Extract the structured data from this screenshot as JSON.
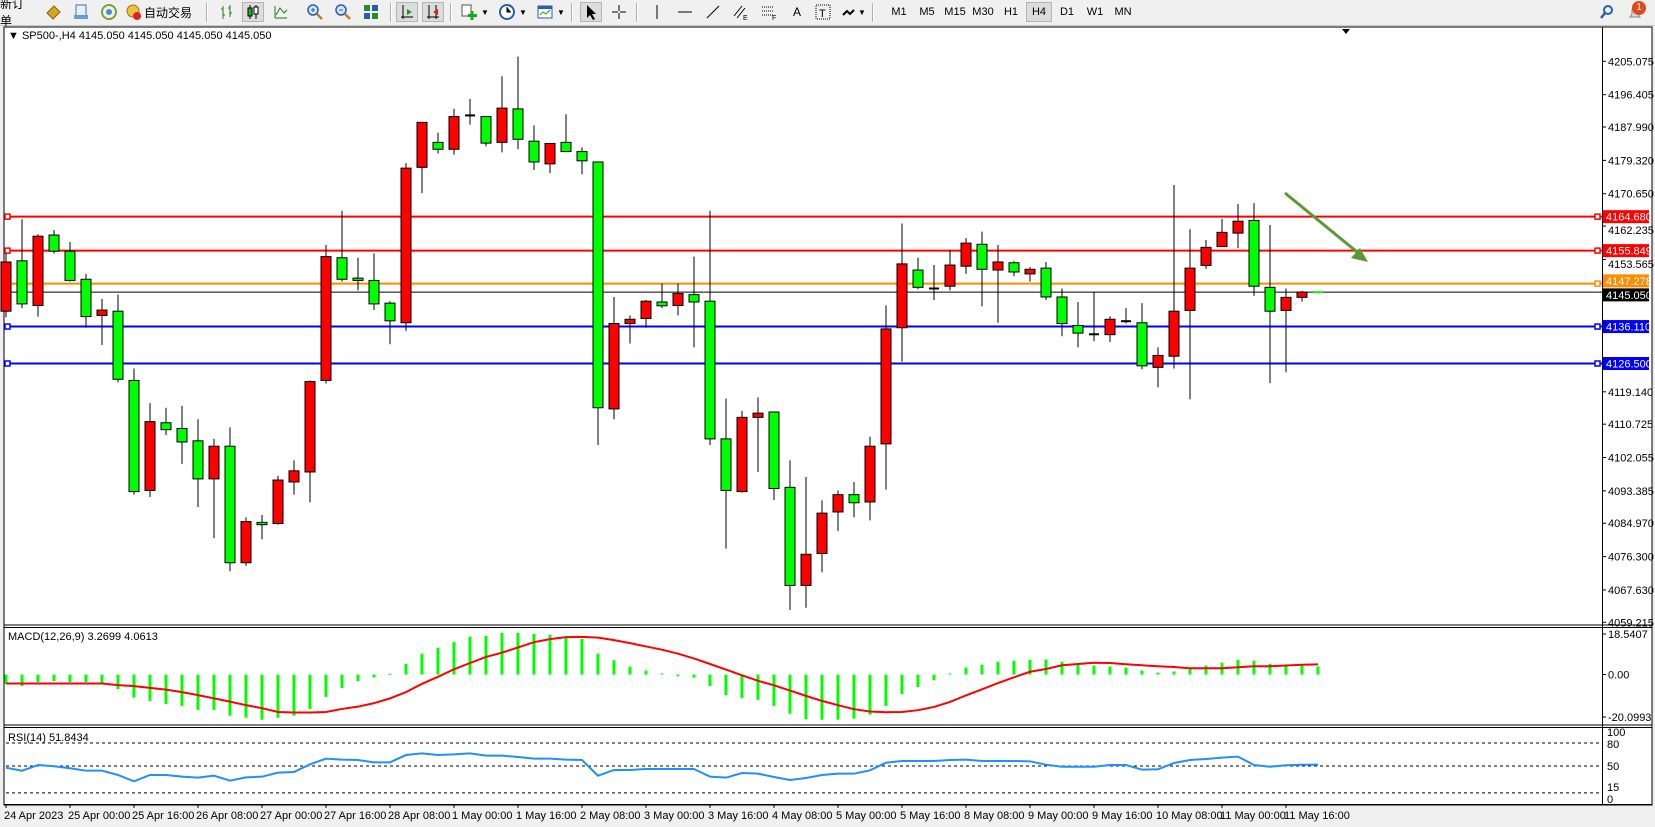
{
  "toolbar": {
    "new_order_label": "新订单",
    "auto_trading_label": "自动交易",
    "timeframes": [
      "M1",
      "M5",
      "M15",
      "M30",
      "H1",
      "H4",
      "D1",
      "W1",
      "MN"
    ],
    "selected_timeframe": "H4",
    "notification_count": "1",
    "tool_letters": {
      "channel": "E",
      "fibo": "F",
      "text": "A",
      "label": "T"
    }
  },
  "chart": {
    "header": "SP500-,H4  4145.050 4145.050 4145.050 4145.050",
    "symbol": "SP500-",
    "period": "H4",
    "current_price": 4145.05,
    "price_axis_labels": [
      "4205.075",
      "4196.405",
      "4187.990",
      "4179.320",
      "4170.650",
      "4162.235",
      "4153.565",
      "4119.140",
      "4110.725",
      "4102.055",
      "4093.385",
      "4084.970",
      "4076.300",
      "4067.630",
      "4059.215"
    ],
    "price_range": [
      4059.215,
      4205.075
    ],
    "bull_color": "#ff0000",
    "bear_color": "#00ff00",
    "horizontal_lines": [
      {
        "price": 4164.68,
        "label": "4164.680",
        "color": "#ff0000"
      },
      {
        "price": 4155.849,
        "label": "4155.849",
        "color": "#ff0000"
      },
      {
        "price": 4147.278,
        "label": "4147.278",
        "color": "#ff8c00"
      },
      {
        "price": 4145.05,
        "label": "4145.050",
        "color": "#000000"
      },
      {
        "price": 4136.11,
        "label": "4136.110",
        "color": "#0000ff"
      },
      {
        "price": 4126.5,
        "label": "4126.500",
        "color": "#0000ff"
      }
    ],
    "arrow_color": "#5a9a32",
    "candles_ohlc": [
      [
        4140.1,
        4155.1,
        4138.5,
        4152.9
      ],
      [
        4153.2,
        4164.0,
        4140.9,
        4142.0
      ],
      [
        4141.6,
        4160.1,
        4138.7,
        4159.6
      ],
      [
        4159.9,
        4161.2,
        4155.1,
        4155.7
      ],
      [
        4155.7,
        4158.1,
        4147.8,
        4148.1
      ],
      [
        4148.4,
        4149.8,
        4135.8,
        4138.7
      ],
      [
        4139.0,
        4143.3,
        4131.3,
        4140.4
      ],
      [
        4140.1,
        4144.4,
        4121.6,
        4122.4
      ],
      [
        4122.1,
        4125.2,
        4092.4,
        4093.2
      ],
      [
        4093.5,
        4116.2,
        4091.8,
        4111.4
      ],
      [
        4111.1,
        4115.0,
        4107.9,
        4109.3
      ],
      [
        4109.6,
        4115.5,
        4100.4,
        4106.1
      ],
      [
        4106.4,
        4112.0,
        4089.2,
        4096.5
      ],
      [
        4096.5,
        4106.9,
        4081.1,
        4105.0
      ],
      [
        4105.0,
        4109.9,
        4072.5,
        4074.7
      ],
      [
        4074.7,
        4086.5,
        4073.9,
        4085.4
      ],
      [
        4085.2,
        4087.1,
        4080.8,
        4084.6
      ],
      [
        4084.9,
        4097.3,
        4084.6,
        4096.2
      ],
      [
        4095.7,
        4101.3,
        4092.4,
        4098.6
      ],
      [
        4098.3,
        4122.1,
        4090.4,
        4121.8
      ],
      [
        4122.1,
        4157.3,
        4121.3,
        4154.3
      ],
      [
        4154.0,
        4166.2,
        4147.8,
        4148.4
      ],
      [
        4148.7,
        4154.0,
        4145.5,
        4148.1
      ],
      [
        4148.1,
        4155.1,
        4140.4,
        4142.0
      ],
      [
        4142.2,
        4142.7,
        4131.5,
        4137.6
      ],
      [
        4137.1,
        4178.6,
        4135.0,
        4177.3
      ],
      [
        4177.5,
        4189.2,
        4170.8,
        4189.2
      ],
      [
        4184.0,
        4186.5,
        4181.1,
        4182.2
      ],
      [
        4182.2,
        4192.7,
        4180.8,
        4190.7
      ],
      [
        4191.0,
        4195.3,
        4188.6,
        4191.0
      ],
      [
        4190.7,
        4190.7,
        4183.0,
        4183.8
      ],
      [
        4184.0,
        4201.2,
        4181.4,
        4192.9
      ],
      [
        4192.7,
        4206.3,
        4182.2,
        4184.8
      ],
      [
        4184.3,
        4188.4,
        4176.8,
        4178.9
      ],
      [
        4178.4,
        4183.7,
        4176.0,
        4183.7
      ],
      [
        4184.0,
        4191.3,
        4181.6,
        4181.6
      ],
      [
        4181.6,
        4182.7,
        4175.7,
        4179.2
      ],
      [
        4178.9,
        4178.9,
        4105.3,
        4115.0
      ],
      [
        4114.7,
        4143.8,
        4112.0,
        4136.9
      ],
      [
        4136.9,
        4139.0,
        4131.7,
        4138.0
      ],
      [
        4138.2,
        4143.0,
        4135.8,
        4142.7
      ],
      [
        4142.5,
        4147.3,
        4140.9,
        4141.5
      ],
      [
        4141.6,
        4147.3,
        4139.0,
        4144.7
      ],
      [
        4144.4,
        4154.3,
        4130.7,
        4142.5
      ],
      [
        4142.7,
        4166.2,
        4105.3,
        4106.9
      ],
      [
        4106.9,
        4117.4,
        4078.4,
        4093.5
      ],
      [
        4093.2,
        4114.2,
        4092.9,
        4112.5
      ],
      [
        4112.5,
        4117.7,
        4098.3,
        4113.6
      ],
      [
        4113.9,
        4113.9,
        4091.0,
        4094.0
      ],
      [
        4094.3,
        4101.3,
        4062.4,
        4068.8
      ],
      [
        4068.8,
        4097.0,
        4063.0,
        4076.9
      ],
      [
        4077.1,
        4090.9,
        4072.2,
        4087.6
      ],
      [
        4087.9,
        4093.5,
        4083.0,
        4092.4
      ],
      [
        4092.4,
        4095.7,
        4086.5,
        4090.3
      ],
      [
        4090.5,
        4107.5,
        4085.7,
        4105.0
      ],
      [
        4105.6,
        4141.6,
        4093.7,
        4135.5
      ],
      [
        4135.8,
        4162.9,
        4127.0,
        4152.4
      ],
      [
        4150.8,
        4154.0,
        4145.8,
        4146.3
      ],
      [
        4146.0,
        4152.1,
        4143.0,
        4146.0
      ],
      [
        4146.6,
        4156.0,
        4145.5,
        4152.1
      ],
      [
        4151.8,
        4159.1,
        4149.8,
        4157.8
      ],
      [
        4157.5,
        4160.8,
        4141.4,
        4151.0
      ],
      [
        4150.8,
        4157.3,
        4137.1,
        4152.9
      ],
      [
        4152.7,
        4153.2,
        4149.2,
        4150.3
      ],
      [
        4149.8,
        4151.6,
        4147.8,
        4151.0
      ],
      [
        4151.3,
        4152.9,
        4143.0,
        4143.8
      ],
      [
        4143.8,
        4146.0,
        4133.6,
        4136.9
      ],
      [
        4136.4,
        4142.5,
        4130.7,
        4134.4
      ],
      [
        4134.1,
        4145.2,
        4132.3,
        4134.1
      ],
      [
        4134.0,
        4138.8,
        4132.1,
        4138.0
      ],
      [
        4137.5,
        4140.9,
        4136.9,
        4137.5
      ],
      [
        4137.1,
        4142.2,
        4125.0,
        4125.9
      ],
      [
        4125.5,
        4130.7,
        4120.3,
        4128.6
      ],
      [
        4128.4,
        4172.9,
        4125.2,
        4140.1
      ],
      [
        4140.3,
        4161.4,
        4117.2,
        4151.3
      ],
      [
        4152.0,
        4158.6,
        4151.1,
        4156.7
      ],
      [
        4156.9,
        4164.1,
        4156.9,
        4160.6
      ],
      [
        4160.4,
        4168.0,
        4156.5,
        4163.5
      ],
      [
        4163.7,
        4168.2,
        4144.1,
        4146.6
      ],
      [
        4146.3,
        4162.5,
        4121.4,
        4140.1
      ],
      [
        4140.3,
        4146.0,
        4124.2,
        4143.7
      ],
      [
        4143.7,
        4145.4,
        4142.6,
        4145.05
      ],
      [
        4145.05,
        4145.05,
        4145.05,
        4145.05
      ]
    ],
    "time_labels": [
      "24 Apr 2023",
      "25 Apr 00:00",
      "25 Apr 16:00",
      "26 Apr 08:00",
      "27 Apr 00:00",
      "27 Apr 16:00",
      "28 Apr 08:00",
      "1 May 00:00",
      "1 May 16:00",
      "2 May 08:00",
      "3 May 00:00",
      "3 May 16:00",
      "4 May 08:00",
      "5 May 00:00",
      "5 May 16:00",
      "8 May 08:00",
      "9 May 00:00",
      "9 May 16:00",
      "10 May 08:00",
      "11 May 00:00",
      "11 May 16:00"
    ]
  },
  "macd": {
    "label": "MACD(12,26,9) 3.2699 4.0613",
    "axis_labels": [
      "18.5407",
      "0.00",
      "-20.0993"
    ],
    "range": [
      -20.0993,
      18.5407
    ],
    "histogram_color": "#00ff00",
    "signal_color": "#ff0000",
    "histogram": [
      -3.7,
      -4.6,
      -3.0,
      -2.6,
      -3.0,
      -3.0,
      -3.9,
      -5.8,
      -9.2,
      -10.5,
      -11.8,
      -12.5,
      -14.1,
      -14.1,
      -16.4,
      -17.2,
      -18.0,
      -17.2,
      -16.4,
      -13.8,
      -8.9,
      -5.4,
      -2.6,
      -1.1,
      0.3,
      4.2,
      8.3,
      10.7,
      13.0,
      15.0,
      15.4,
      16.6,
      16.6,
      16.2,
      15.8,
      14.7,
      14.2,
      8.3,
      5.7,
      3.2,
      1.6,
      0.4,
      -0.7,
      -1.2,
      -4.6,
      -8.2,
      -9.3,
      -10.1,
      -12.5,
      -15.6,
      -17.8,
      -18.0,
      -18.0,
      -17.6,
      -16.0,
      -12.5,
      -7.8,
      -5.0,
      -2.2,
      0.4,
      2.8,
      3.9,
      5.1,
      5.5,
      5.9,
      6.0,
      5.1,
      3.9,
      3.6,
      3.2,
      2.8,
      1.6,
      0.8,
      1.2,
      2.8,
      3.6,
      4.7,
      5.9,
      5.5,
      4.3,
      3.9,
      3.9,
      3.2699
    ],
    "signal": [
      -3.55,
      -3.55,
      -3.55,
      -3.55,
      -3.55,
      -3.55,
      -3.55,
      -4.2,
      -4.6,
      -5.3,
      -6.0,
      -7.0,
      -8.2,
      -9.5,
      -10.8,
      -12.2,
      -13.4,
      -14.9,
      -15.1,
      -15.1,
      -14.9,
      -13.7,
      -12.8,
      -11.4,
      -9.5,
      -7.0,
      -3.7,
      -0.9,
      2.1,
      4.6,
      7.0,
      8.7,
      10.8,
      12.9,
      14.1,
      14.9,
      15.0,
      14.7,
      13.7,
      12.5,
      11.2,
      9.9,
      8.3,
      6.4,
      4.2,
      2.0,
      -0.3,
      -2.5,
      -4.3,
      -6.4,
      -8.5,
      -10.5,
      -12.2,
      -13.8,
      -14.7,
      -15.0,
      -14.9,
      -14.2,
      -12.9,
      -10.9,
      -8.3,
      -5.9,
      -3.4,
      -1.1,
      1.1,
      2.2,
      3.7,
      4.2,
      4.7,
      4.6,
      4.1,
      3.7,
      3.3,
      3.0,
      2.5,
      2.5,
      2.5,
      2.9,
      3.3,
      3.3,
      3.6,
      3.9,
      4.0613
    ]
  },
  "rsi": {
    "label": "RSI(14) 51.8434",
    "axis_labels": [
      "100",
      "80",
      "50",
      "15",
      "0"
    ],
    "levels": [
      80,
      50,
      15
    ],
    "line_color": "#1e90ff",
    "values": [
      47.8,
      43.9,
      51.3,
      49.6,
      47.0,
      43.9,
      43.9,
      38.3,
      30.0,
      38.3,
      38.3,
      36.1,
      34.8,
      37.4,
      30.9,
      35.2,
      36.1,
      41.3,
      42.2,
      52.2,
      59.6,
      58.3,
      57.8,
      54.8,
      54.8,
      64.3,
      66.5,
      64.3,
      65.2,
      66.5,
      63.5,
      63.5,
      61.7,
      59.6,
      59.6,
      58.3,
      57.8,
      37.4,
      44.8,
      44.8,
      46.1,
      46.1,
      46.1,
      46.1,
      36.1,
      34.8,
      40.9,
      40.0,
      35.7,
      31.7,
      34.4,
      38.3,
      40.0,
      40.0,
      44.4,
      54.3,
      56.5,
      56.5,
      56.5,
      57.8,
      58.3,
      56.5,
      56.5,
      56.5,
      56.1,
      51.7,
      49.1,
      49.1,
      49.1,
      51.3,
      51.3,
      45.2,
      45.7,
      53.9,
      57.8,
      59.1,
      60.9,
      62.2,
      51.3,
      49.1,
      50.9,
      51.7,
      51.8434
    ]
  }
}
